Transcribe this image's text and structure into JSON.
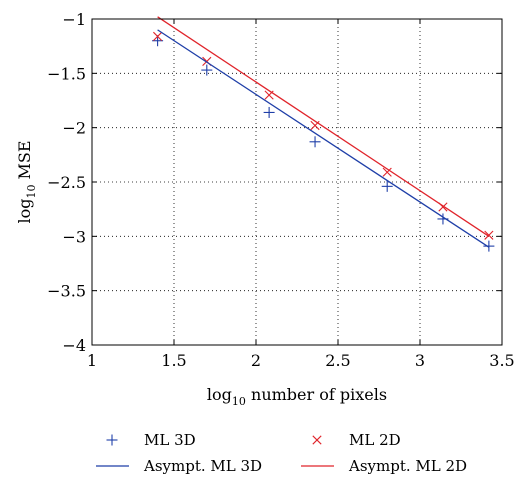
{
  "chart_data": {
    "type": "scatter",
    "xlabel": {
      "prefix": "log",
      "sub": "10",
      "suffix": " number of pixels"
    },
    "ylabel": {
      "prefix": "log",
      "sub": "10",
      "suffix": " MSE"
    },
    "xlim": [
      1,
      3.5
    ],
    "ylim": [
      -4,
      -1
    ],
    "xticks": [
      1,
      1.5,
      2,
      2.5,
      3,
      3.5
    ],
    "xtick_labels": [
      "1",
      "1.5",
      "2",
      "2.5",
      "3",
      "3.5"
    ],
    "yticks": [
      -4,
      -3.5,
      -3,
      -2.5,
      -2,
      -1.5,
      -1
    ],
    "ytick_labels": [
      "−4",
      "−3.5",
      "−3",
      "−2.5",
      "−2",
      "−1.5",
      "−1"
    ],
    "grid": true,
    "legend_position": "bottom",
    "series": [
      {
        "name": "ML 3D",
        "kind": "points",
        "marker": "plus",
        "color": "#1f3fa8",
        "x": [
          1.4,
          1.7,
          2.08,
          2.36,
          2.8,
          3.14,
          3.42
        ],
        "y": [
          -1.2,
          -1.47,
          -1.86,
          -2.13,
          -2.54,
          -2.84,
          -3.09
        ]
      },
      {
        "name": "ML 2D",
        "kind": "points",
        "marker": "cross",
        "color": "#e0242b",
        "x": [
          1.4,
          1.7,
          2.08,
          2.36,
          2.8,
          3.14,
          3.42
        ],
        "y": [
          -1.16,
          -1.39,
          -1.7,
          -1.98,
          -2.41,
          -2.73,
          -2.99
        ]
      },
      {
        "name": "Asympt. ML 3D",
        "kind": "line",
        "color": "#1f3fa8",
        "x": [
          1.4,
          3.42
        ],
        "y": [
          -1.1,
          -3.1
        ]
      },
      {
        "name": "Asympt. ML 2D",
        "kind": "line",
        "color": "#e0242b",
        "x": [
          1.4,
          3.42
        ],
        "y": [
          -0.98,
          -3.0
        ]
      }
    ]
  }
}
